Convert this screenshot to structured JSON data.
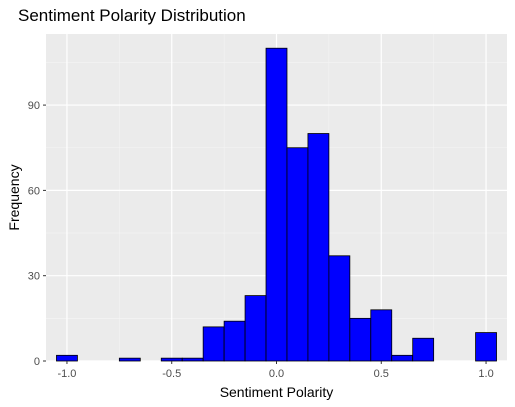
{
  "chart_data": {
    "type": "bar",
    "title": "Sentiment Polarity Distribution",
    "xlabel": "Sentiment Polarity",
    "ylabel": "Frequency",
    "xlim": [
      -1.1,
      1.1
    ],
    "ylim": [
      0,
      115
    ],
    "x_ticks": [
      -1.0,
      -0.5,
      0.0,
      0.5,
      1.0
    ],
    "x_tick_labels": [
      "-1.0",
      "-0.5",
      "0.0",
      "0.5",
      "1.0"
    ],
    "y_ticks": [
      0,
      30,
      60,
      90
    ],
    "y_tick_labels": [
      "0",
      "30",
      "60",
      "90"
    ],
    "grid": true,
    "bar_color": "#0000ff",
    "bar_outline": "#000000",
    "panel_background": "#ebebeb",
    "bins": [
      {
        "x0": -1.05,
        "x1": -0.95,
        "count": 2
      },
      {
        "x0": -0.95,
        "x1": -0.85,
        "count": 0
      },
      {
        "x0": -0.85,
        "x1": -0.75,
        "count": 0
      },
      {
        "x0": -0.75,
        "x1": -0.65,
        "count": 1
      },
      {
        "x0": -0.65,
        "x1": -0.55,
        "count": 0
      },
      {
        "x0": -0.55,
        "x1": -0.45,
        "count": 1
      },
      {
        "x0": -0.45,
        "x1": -0.35,
        "count": 1
      },
      {
        "x0": -0.35,
        "x1": -0.25,
        "count": 12
      },
      {
        "x0": -0.25,
        "x1": -0.15,
        "count": 14
      },
      {
        "x0": -0.15,
        "x1": -0.05,
        "count": 23
      },
      {
        "x0": -0.05,
        "x1": 0.05,
        "count": 110
      },
      {
        "x0": 0.05,
        "x1": 0.15,
        "count": 75
      },
      {
        "x0": 0.15,
        "x1": 0.25,
        "count": 80
      },
      {
        "x0": 0.25,
        "x1": 0.35,
        "count": 37
      },
      {
        "x0": 0.35,
        "x1": 0.45,
        "count": 15
      },
      {
        "x0": 0.45,
        "x1": 0.55,
        "count": 18
      },
      {
        "x0": 0.55,
        "x1": 0.65,
        "count": 2
      },
      {
        "x0": 0.65,
        "x1": 0.75,
        "count": 8
      },
      {
        "x0": 0.75,
        "x1": 0.85,
        "count": 0
      },
      {
        "x0": 0.85,
        "x1": 0.95,
        "count": 0
      },
      {
        "x0": 0.95,
        "x1": 1.05,
        "count": 10
      }
    ]
  }
}
